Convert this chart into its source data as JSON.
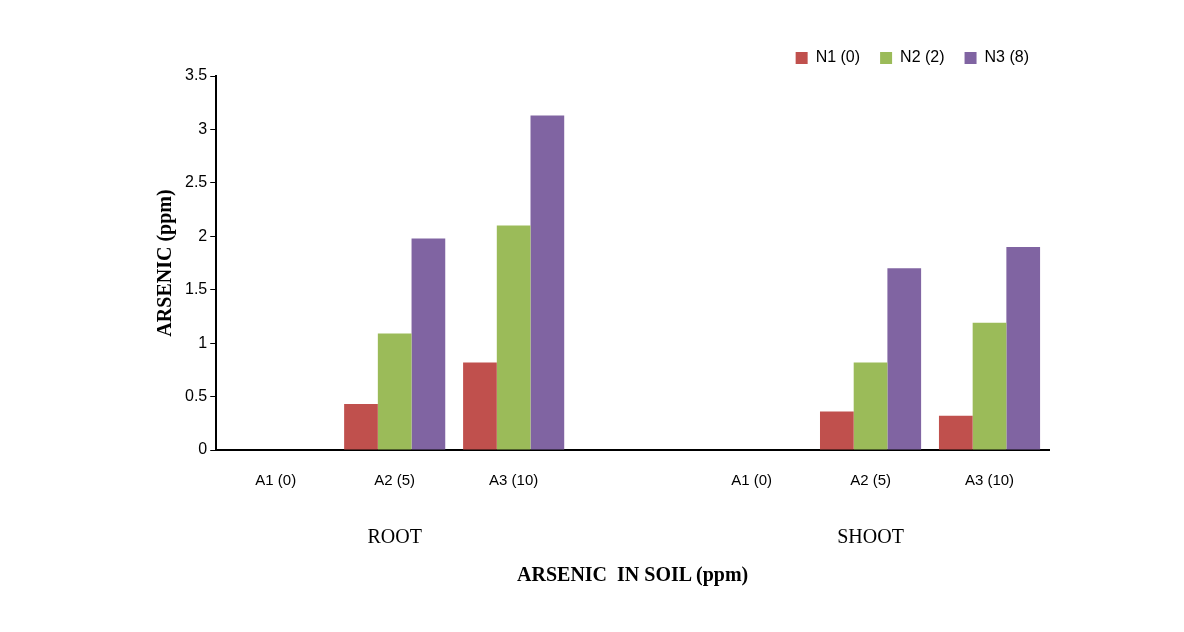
{
  "chart_data": {
    "type": "bar",
    "xlabel": "ARSENIC  IN SOIL (ppm)",
    "ylabel": "ARSENIC (ppm)",
    "categories": [
      "A1 (0)",
      "A2 (5)",
      "A3 (10)",
      null,
      "A1 (0)",
      "A2 (5)",
      "A3 (10)"
    ],
    "series": [
      {
        "name": "N1 (0)",
        "color": "#c0504d",
        "values": [
          0,
          0.43,
          0.82,
          null,
          0,
          0.36,
          0.32
        ]
      },
      {
        "name": "N2 (2)",
        "color": "#9bbb59",
        "values": [
          0,
          1.09,
          2.1,
          null,
          0,
          0.82,
          1.19
        ]
      },
      {
        "name": "N3 (8)",
        "color": "#8064a2",
        "values": [
          0,
          1.98,
          3.13,
          null,
          0,
          1.7,
          1.9
        ]
      }
    ],
    "ylim": [
      0,
      3.5
    ],
    "yticks": [
      0,
      0.5,
      1,
      1.5,
      2,
      2.5,
      3,
      3.5
    ],
    "grid": false,
    "legend": "top right",
    "annotations": [
      "ROOT",
      "SHOOT"
    ]
  }
}
